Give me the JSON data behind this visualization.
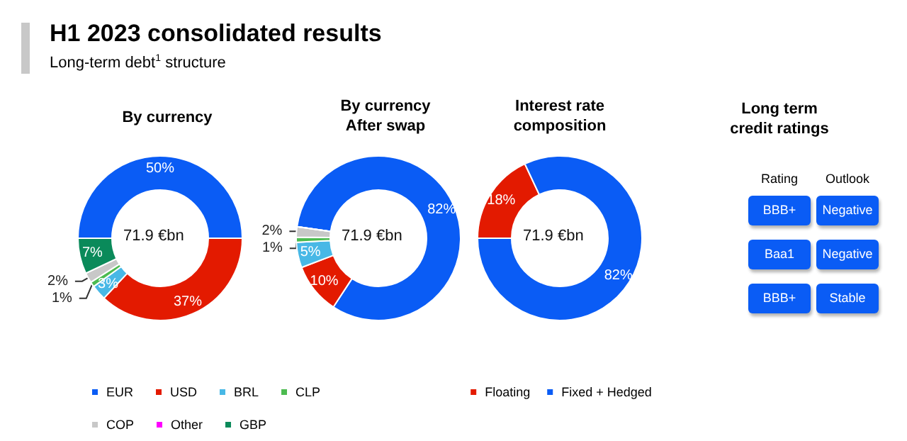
{
  "chart_data": [
    {
      "type": "other",
      "title": "H1 2023 consolidated results",
      "subtitle": "Long-term debt$^{1}$ structure"
    },
    {
      "type": "donut",
      "categories": [
        "EUR",
        "USD",
        "BRL",
        "CLP",
        "COP",
        "Other",
        "GBP"
      ],
      "colors": [
        "#0a5cf5",
        "#e31a00",
        "#48b8e6",
        "#4cbb50",
        "#c8c8c8",
        "#ff00ff",
        "#0a8a5a"
      ],
      "annotations": [
        "71.9 €bn",
        "71.9 €bn"
      ],
      "legend": "bottom",
      "series": [
        {
          "name": "By currency",
          "values": [
            50,
            37,
            3,
            1,
            2,
            0,
            7
          ],
          "value_labels": [
            "50%",
            "37%",
            "3%",
            "1%",
            "2%",
            null,
            "7%"
          ]
        },
        {
          "name": "By currency\nAfter swap",
          "values": [
            82,
            10,
            5,
            1,
            2,
            0,
            0
          ],
          "value_labels": [
            "82%",
            "10%",
            "5%",
            "1%",
            "2%",
            null,
            null
          ]
        }
      ]
    },
    {
      "type": "donut",
      "title": "Interest rate\ncomposition",
      "categories": [
        "Floating",
        "Fixed + Hedged"
      ],
      "values": [
        18,
        82
      ],
      "colors": [
        "#e31a00",
        "#0a5cf5"
      ],
      "value_labels": [
        "18%",
        "82%"
      ],
      "annotations": [
        "71.9 €bn"
      ],
      "legend": "bottom"
    },
    {
      "type": "other",
      "title": "Long term\ncredit ratings",
      "annotations": [
        "Rating",
        "Outlook",
        "BBB+",
        "Negative",
        "Baa1",
        "Negative",
        "BBB+",
        "Stable"
      ]
    }
  ]
}
